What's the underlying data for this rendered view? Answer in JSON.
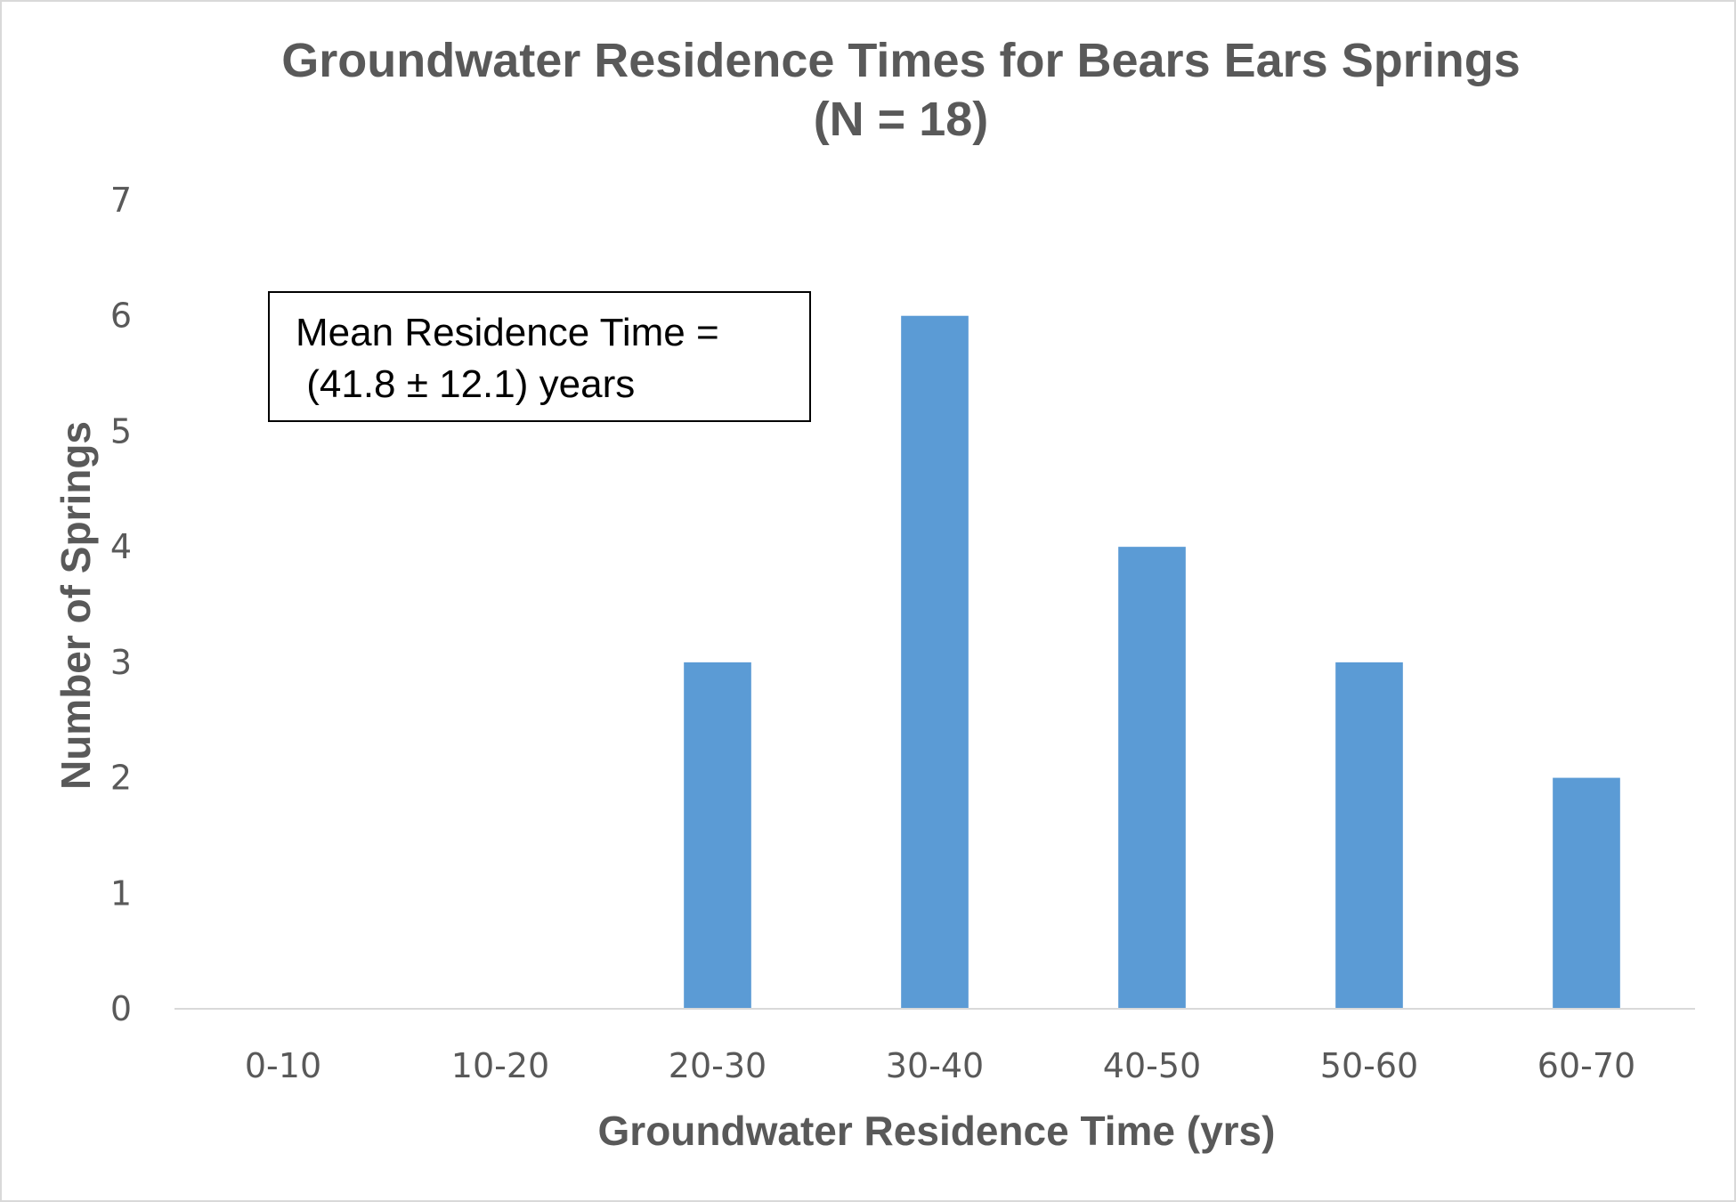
{
  "chart_data": {
    "type": "bar",
    "title": "Groundwater Residence Times for Bears Ears Springs",
    "subtitle": "(N = 18)",
    "xlabel": "Groundwater Residence Time (yrs)",
    "ylabel": "Number of Springs",
    "categories": [
      "0-10",
      "10-20",
      "20-30",
      "30-40",
      "40-50",
      "50-60",
      "60-70"
    ],
    "values": [
      0,
      0,
      3,
      6,
      4,
      3,
      2
    ],
    "ylim": [
      0,
      7
    ],
    "yticks": [
      "0",
      "1",
      "2",
      "3",
      "4",
      "5",
      "6",
      "7"
    ],
    "grid": false,
    "bar_color": "#5b9bd5",
    "annotation": {
      "line1": "Mean Residence Time =",
      "line2": " (41.8 ± 12.1) years"
    }
  }
}
